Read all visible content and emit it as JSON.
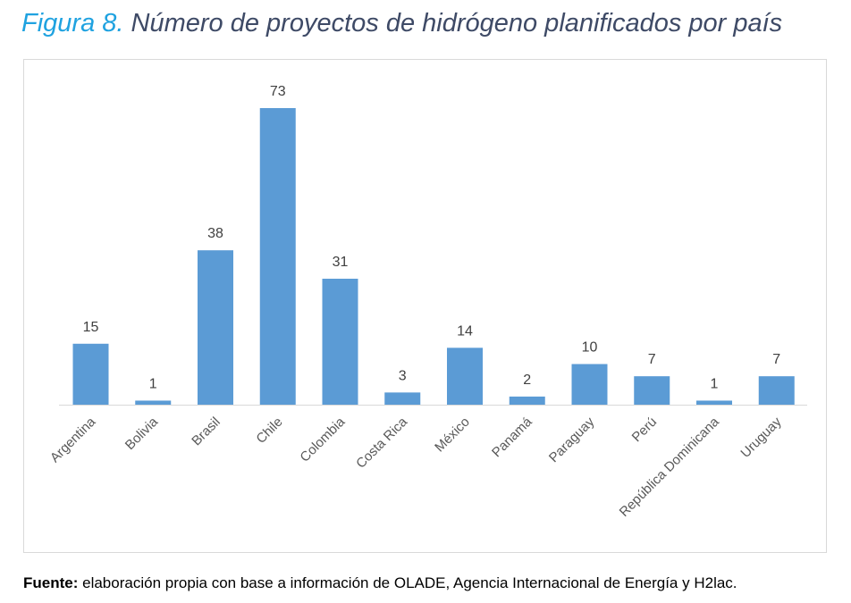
{
  "figure": {
    "label": "Figura 8.",
    "title": "Número de proyectos de hidrógeno planificados por país"
  },
  "source": {
    "label": "Fuente:",
    "text": "elaboración propia con base a información de OLADE, Agencia Internacional de Energía y H2lac."
  },
  "colors": {
    "bar": "#5b9bd5",
    "figure_label": "#1fa2e0",
    "title": "#3e4a66"
  },
  "chart_data": {
    "type": "bar",
    "categories": [
      "Argentina",
      "Bolivia",
      "Brasil",
      "Chile",
      "Colombia",
      "Costa Rica",
      "México",
      "Panamá",
      "Paraguay",
      "Perú",
      "República Dominicana",
      "Uruguay"
    ],
    "values": [
      15,
      1,
      38,
      73,
      31,
      3,
      14,
      2,
      10,
      7,
      1,
      7
    ],
    "data_labels": true,
    "grid": false,
    "legend": "none",
    "ylim": [
      0,
      73
    ]
  }
}
